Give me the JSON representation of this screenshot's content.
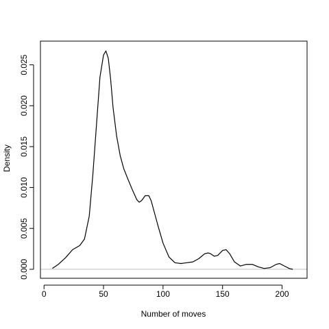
{
  "chart_data": {
    "type": "line",
    "title": "",
    "xlabel": "Number of moves",
    "ylabel": "Density",
    "xlim": [
      -3,
      221
    ],
    "ylim": [
      -0.0011,
      0.0279
    ],
    "x_ticks": [
      0,
      50,
      100,
      150,
      200
    ],
    "x_tick_labels": [
      "0",
      "50",
      "100",
      "150",
      "200"
    ],
    "y_ticks": [
      0.0,
      0.005,
      0.01,
      0.015,
      0.02,
      0.025
    ],
    "y_tick_labels": [
      "0.000",
      "0.005",
      "0.010",
      "0.015",
      "0.020",
      "0.025"
    ],
    "baseline": 0,
    "grid": false,
    "series": [
      {
        "x": [
          7,
          12,
          18,
          24,
          30,
          34,
          38,
          41,
          44,
          47,
          50,
          52,
          54,
          56,
          58,
          61,
          64,
          67,
          70,
          74,
          78,
          80,
          82,
          85,
          88,
          90,
          93,
          96,
          100,
          105,
          110,
          115,
          120,
          125,
          130,
          135,
          138,
          140,
          143,
          146,
          150,
          153,
          156,
          160,
          165,
          170,
          175,
          180,
          185,
          190,
          195,
          198,
          202,
          206,
          209
        ],
        "y": [
          0.0001,
          0.0006,
          0.0014,
          0.0024,
          0.0029,
          0.0037,
          0.0065,
          0.0115,
          0.0175,
          0.0235,
          0.0262,
          0.0267,
          0.0258,
          0.0232,
          0.0198,
          0.0163,
          0.0139,
          0.0123,
          0.0112,
          0.0098,
          0.0085,
          0.0082,
          0.0084,
          0.009,
          0.009,
          0.0084,
          0.0068,
          0.0052,
          0.0032,
          0.0015,
          0.0008,
          0.0007,
          0.0008,
          0.0009,
          0.0013,
          0.0019,
          0.002,
          0.0019,
          0.0016,
          0.0017,
          0.0023,
          0.0024,
          0.0019,
          0.0009,
          0.0004,
          0.0006,
          0.0006,
          0.0003,
          0.0001,
          0.0002,
          0.0006,
          0.0007,
          0.0004,
          0.0001,
          0.0
        ]
      }
    ]
  }
}
